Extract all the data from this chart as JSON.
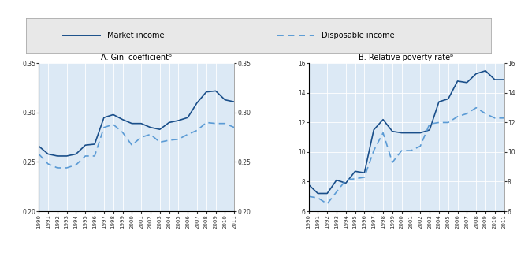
{
  "years": [
    1990,
    1991,
    1992,
    1993,
    1994,
    1995,
    1996,
    1997,
    1998,
    1999,
    2000,
    2001,
    2002,
    2003,
    2004,
    2005,
    2006,
    2007,
    2008,
    2009,
    2010,
    2011
  ],
  "gini_market": [
    0.266,
    0.258,
    0.256,
    0.256,
    0.258,
    0.267,
    0.268,
    0.295,
    0.298,
    0.293,
    0.289,
    0.289,
    0.285,
    0.283,
    0.29,
    0.292,
    0.295,
    0.31,
    0.321,
    0.322,
    0.313,
    0.311
  ],
  "gini_disposable": [
    0.258,
    0.248,
    0.244,
    0.244,
    0.247,
    0.256,
    0.256,
    0.285,
    0.288,
    0.28,
    0.267,
    0.275,
    0.278,
    0.27,
    0.272,
    0.273,
    0.278,
    0.282,
    0.29,
    0.289,
    0.289,
    0.285
  ],
  "poverty_market": [
    7.8,
    7.2,
    7.2,
    8.1,
    7.9,
    8.7,
    8.6,
    11.5,
    12.2,
    11.4,
    11.3,
    11.3,
    11.3,
    11.5,
    13.4,
    13.6,
    14.8,
    14.7,
    15.3,
    15.5,
    14.9,
    14.9
  ],
  "poverty_disposable": [
    7.0,
    6.9,
    6.5,
    7.3,
    8.1,
    8.2,
    8.3,
    10.1,
    11.3,
    9.3,
    10.1,
    10.1,
    10.4,
    11.9,
    12.0,
    12.0,
    12.4,
    12.6,
    13.0,
    12.6,
    12.3,
    12.3
  ],
  "title_a": "A. Gini coefficientᵇ",
  "title_b": "B. Relative poverty rateᵇ",
  "legend_market": "Market income",
  "legend_disposable": "Disposable income",
  "gini_ylim": [
    0.2,
    0.35
  ],
  "poverty_ylim": [
    6,
    16
  ],
  "gini_yticks": [
    0.2,
    0.25,
    0.3,
    0.35
  ],
  "poverty_yticks": [
    6,
    8,
    10,
    12,
    14,
    16
  ],
  "line_color_dark": "#1a4f8a",
  "line_color_light": "#5b9bd5",
  "fig_bg": "#ffffff",
  "panel_bg": "#dce9f5",
  "legend_bg": "#e8e8e8"
}
